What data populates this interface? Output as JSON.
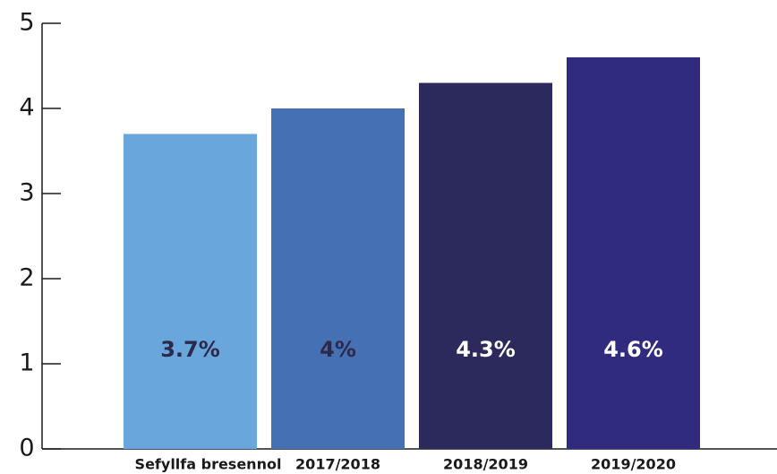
{
  "chart_data": {
    "type": "bar",
    "categories": [
      "Sefyllfa bresennol",
      "2017/2018",
      "2018/2019",
      "2019/2020"
    ],
    "values": [
      3.7,
      4,
      4.3,
      4.6
    ],
    "value_labels": [
      "3.7%",
      "4%",
      "4.3%",
      "4.6%"
    ],
    "colors": [
      "#69a6dc",
      "#4570b3",
      "#2c2a5c",
      "#302b7e"
    ],
    "value_label_colors": [
      "#2b2a4a",
      "#2b2a4a",
      "#ffffff",
      "#ffffff"
    ],
    "ylim": [
      0,
      5
    ],
    "yticks": [
      0,
      1,
      2,
      3,
      4,
      5
    ],
    "grid": false
  }
}
